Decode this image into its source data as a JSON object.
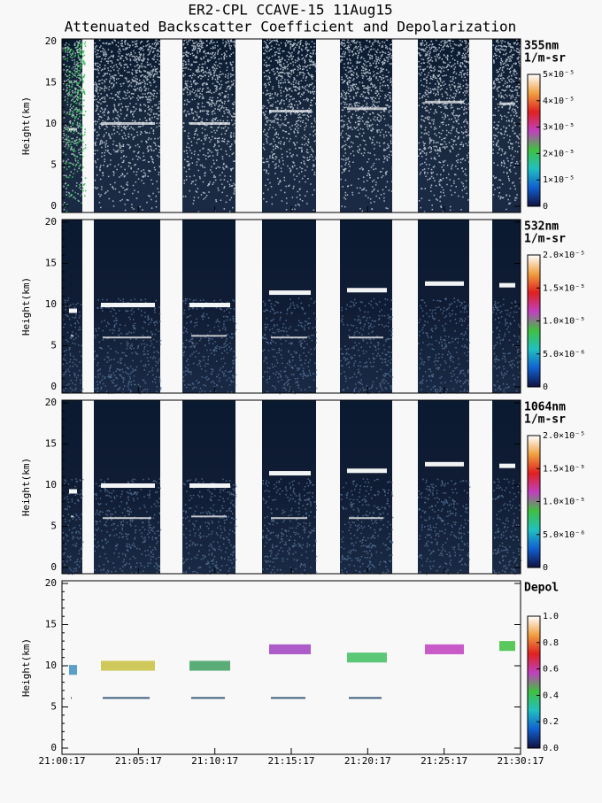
{
  "chart_data": [
    {
      "type": "heatmap",
      "title": "ER2-CPL CCAVE-15 11Aug15",
      "subtitle": "Attenuated Backscatter Coefficient and Depolarization",
      "ylabel": "Height(km)",
      "ylim": [
        0,
        20
      ],
      "yticks": [
        0,
        5,
        10,
        15,
        20
      ],
      "label": "355nm",
      "units": "1/m-sr",
      "clim": [
        0,
        5e-05
      ],
      "cticks": [
        {
          "value": 0,
          "label": "0"
        },
        {
          "value": 1e-05,
          "label": "1×10⁻⁵"
        },
        {
          "value": 2e-05,
          "label": "2×10⁻⁵"
        },
        {
          "value": 3e-05,
          "label": "3×10⁻⁵"
        },
        {
          "value": 4e-05,
          "label": "4×10⁻⁵"
        },
        {
          "value": 5e-05,
          "label": "5×10⁻⁵"
        }
      ],
      "colormap": [
        "#101040",
        "#1060d0",
        "#20c0c0",
        "#40c040",
        "#c040c0",
        "#e02020",
        "#f0a040",
        "#ffffff"
      ]
    },
    {
      "type": "heatmap",
      "ylabel": "Height(km)",
      "ylim": [
        0,
        20
      ],
      "yticks": [
        0,
        5,
        10,
        15,
        20
      ],
      "label": "532nm",
      "units": "1/m-sr",
      "clim": [
        0,
        2e-05
      ],
      "cticks": [
        {
          "value": 0,
          "label": "0"
        },
        {
          "value": 5e-06,
          "label": "5.0×10⁻⁶"
        },
        {
          "value": 1e-05,
          "label": "1.0×10⁻⁵"
        },
        {
          "value": 1.5e-05,
          "label": "1.5×10⁻⁵"
        },
        {
          "value": 2e-05,
          "label": "2.0×10⁻⁵"
        }
      ],
      "colormap": [
        "#101040",
        "#1060d0",
        "#20c0c0",
        "#40c040",
        "#c040c0",
        "#e02020",
        "#f0a040",
        "#ffffff"
      ]
    },
    {
      "type": "heatmap",
      "ylabel": "Height(km)",
      "ylim": [
        0,
        20
      ],
      "yticks": [
        0,
        5,
        10,
        15,
        20
      ],
      "label": "1064nm",
      "units": "1/m-sr",
      "clim": [
        0,
        2e-05
      ],
      "cticks": [
        {
          "value": 0,
          "label": "0"
        },
        {
          "value": 5e-06,
          "label": "5.0×10⁻⁶"
        },
        {
          "value": 1e-05,
          "label": "1.0×10⁻⁵"
        },
        {
          "value": 1.5e-05,
          "label": "1.5×10⁻⁵"
        },
        {
          "value": 2e-05,
          "label": "2.0×10⁻⁵"
        }
      ],
      "colormap": [
        "#101040",
        "#1060d0",
        "#20c0c0",
        "#40c040",
        "#c040c0",
        "#e02020",
        "#f0a040",
        "#ffffff"
      ]
    },
    {
      "type": "heatmap",
      "ylabel": "Height(km)",
      "ylim": [
        0,
        20
      ],
      "yticks": [
        0,
        5,
        10,
        15,
        20
      ],
      "label": "Depol",
      "clim": [
        0,
        1
      ],
      "cticks": [
        {
          "value": 0,
          "label": "0.0"
        },
        {
          "value": 0.2,
          "label": "0.2"
        },
        {
          "value": 0.4,
          "label": "0.4"
        },
        {
          "value": 0.6,
          "label": "0.6"
        },
        {
          "value": 0.8,
          "label": "0.8"
        },
        {
          "value": 1,
          "label": "1.0"
        }
      ],
      "colormap": [
        "#101040",
        "#1060d0",
        "#20c0c0",
        "#40c040",
        "#c040c0",
        "#e02020",
        "#f0a040",
        "#ffffff"
      ],
      "xlim": [
        "21:00:17",
        "21:30:17"
      ],
      "xticks": [
        "21:00:17",
        "21:05:17",
        "21:10:17",
        "21:15:17",
        "21:20:17",
        "21:25:17",
        "21:30:17"
      ]
    }
  ]
}
